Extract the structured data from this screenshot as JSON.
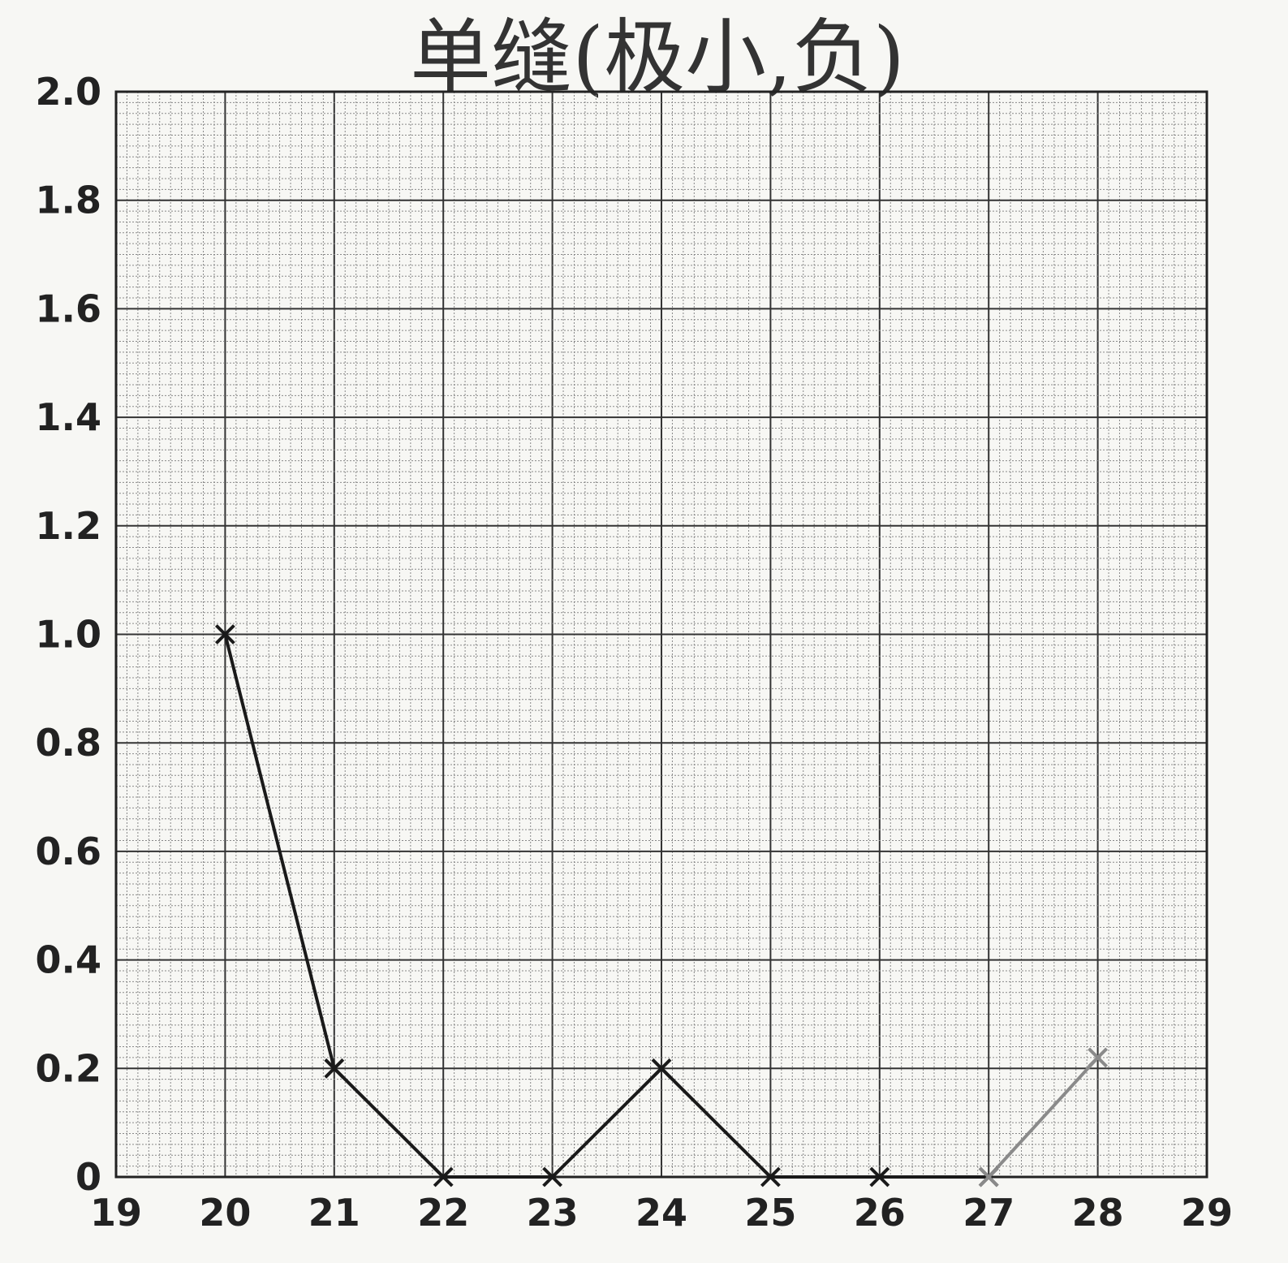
{
  "chart_data": {
    "type": "line",
    "title": "单缝(极小,负)",
    "xlabel": "",
    "ylabel": "",
    "xlim": [
      19,
      29
    ],
    "ylim": [
      0,
      2.0
    ],
    "x_ticks": [
      "19",
      "20",
      "21",
      "22",
      "23",
      "24",
      "25",
      "26",
      "27",
      "28",
      "29"
    ],
    "y_ticks": [
      "0",
      "0.2",
      "0.4",
      "0.6",
      "0.8",
      "1.0",
      "1.2",
      "1.4",
      "1.6",
      "1.8",
      "2.0"
    ],
    "grid": true,
    "marker": "x",
    "series": [
      {
        "x": [
          20,
          21,
          22,
          23,
          24,
          25,
          26,
          27
        ],
        "y": [
          1.0,
          0.2,
          0.0,
          0.0,
          0.2,
          0.0,
          0.0,
          0.0
        ],
        "color": "#1a1a1a"
      },
      {
        "x": [
          27,
          28
        ],
        "y": [
          0.0,
          0.22
        ],
        "color": "#8a8a8a"
      }
    ]
  }
}
